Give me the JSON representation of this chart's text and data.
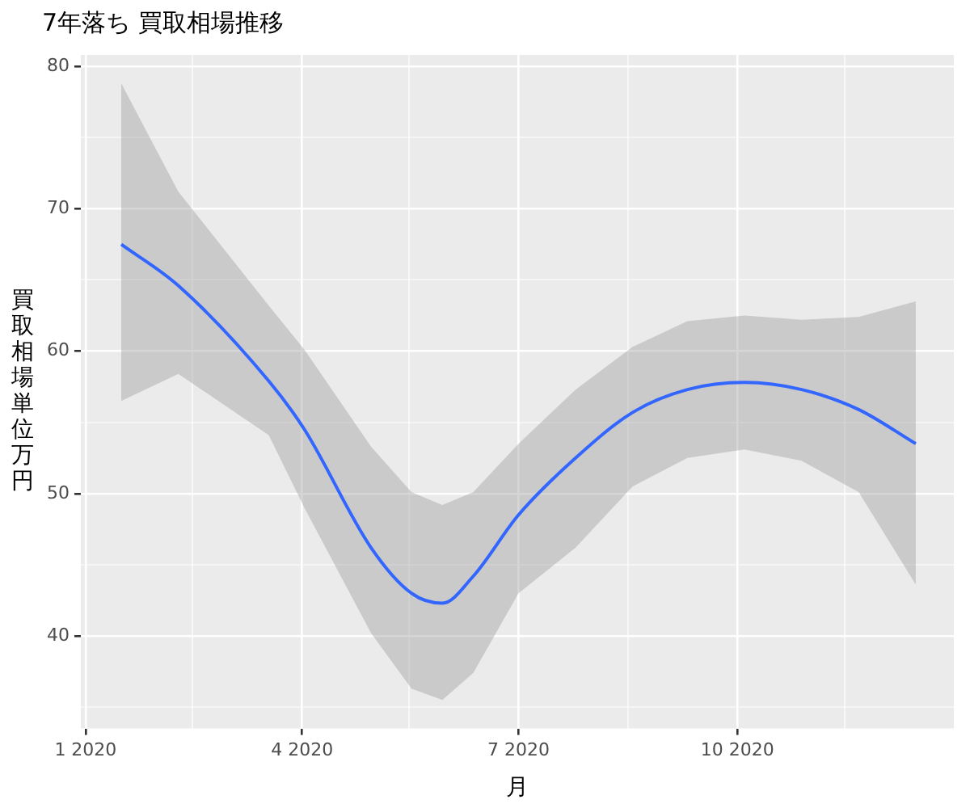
{
  "chart_data": {
    "type": "line",
    "title": "7年落ち 買取相場推移",
    "xlabel": "月",
    "ylabel": "買取相場単位万円",
    "x": [
      "2020-01-16",
      "2020-02-09",
      "2020-03-18",
      "2020-04-02",
      "2020-04-30",
      "2020-05-17",
      "2020-05-30",
      "2020-06-12",
      "2020-07-01",
      "2020-07-25",
      "2020-08-18",
      "2020-09-10",
      "2020-10-04",
      "2020-10-28",
      "2020-11-21",
      "2020-12-15"
    ],
    "series": [
      {
        "color": "#3366ff",
        "values": [
          67.5,
          64.6,
          57.9,
          54.5,
          46.2,
          43.0,
          42.3,
          44.2,
          48.5,
          52.5,
          55.7,
          57.3,
          57.8,
          57.3,
          55.9,
          53.5
        ],
        "lower": [
          56.5,
          58.4,
          54.1,
          49.0,
          40.2,
          36.3,
          35.5,
          37.4,
          43.0,
          46.2,
          50.5,
          52.5,
          53.1,
          52.3,
          50.1,
          43.6
        ],
        "upper": [
          78.8,
          71.2,
          63.2,
          60.1,
          53.3,
          50.1,
          49.2,
          50.1,
          53.5,
          57.3,
          60.3,
          62.1,
          62.5,
          62.2,
          62.4,
          63.5
        ]
      }
    ],
    "xlim": [
      "2019-12-30",
      "2020-12-31"
    ],
    "xticks": [
      {
        "value": "2020-01-01",
        "label": "1 2020"
      },
      {
        "value": "2020-02-15",
        "label": null
      },
      {
        "value": "2020-04-01",
        "label": "4 2020"
      },
      {
        "value": "2020-05-16",
        "label": null
      },
      {
        "value": "2020-07-01",
        "label": "7 2020"
      },
      {
        "value": "2020-08-16",
        "label": null
      },
      {
        "value": "2020-10-01",
        "label": "10 2020"
      },
      {
        "value": "2020-11-15",
        "label": null
      }
    ],
    "ylim": [
      33.5,
      80.8
    ],
    "yticks": [
      {
        "value": 35,
        "label": null
      },
      40,
      {
        "value": 45,
        "label": null
      },
      50,
      {
        "value": 55,
        "label": null
      },
      60,
      {
        "value": 65,
        "label": null
      },
      70,
      {
        "value": 75,
        "label": null
      },
      80
    ],
    "grid": true,
    "legend": false,
    "marker": "none",
    "line_style": "solid"
  }
}
